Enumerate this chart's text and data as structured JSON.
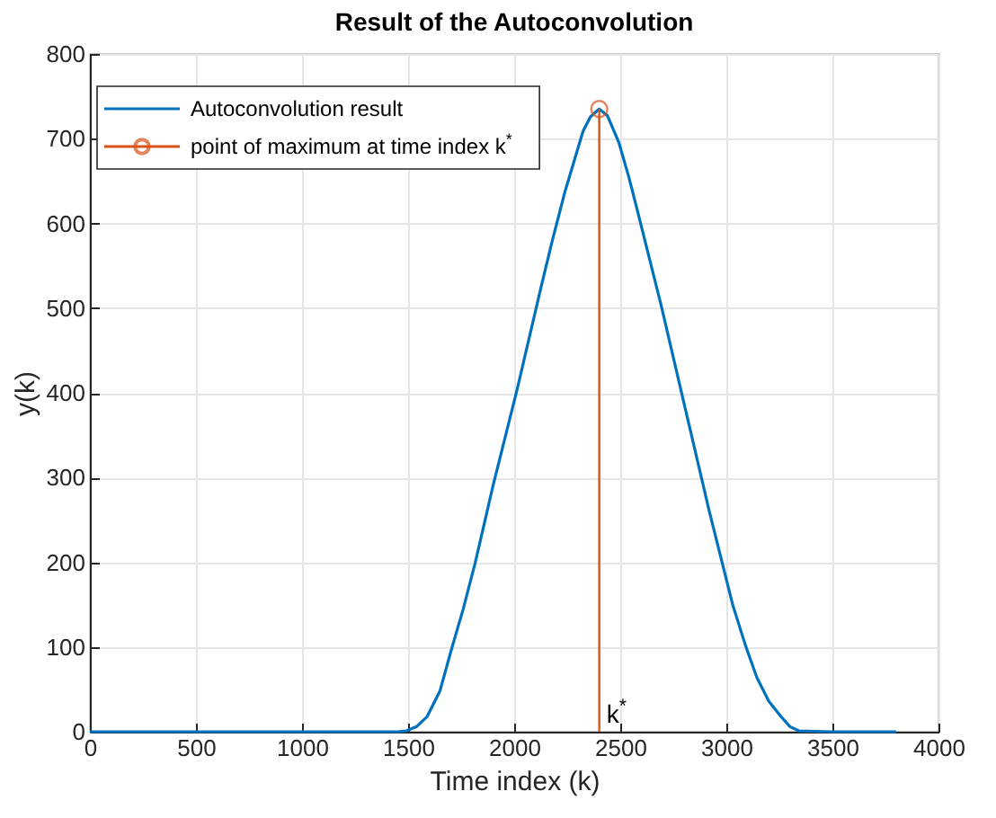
{
  "chart_data": {
    "type": "line",
    "title": "Result of the Autoconvolution",
    "xlabel": "Time index (k)",
    "ylabel": "y(k)",
    "series": [
      {
        "name": "Autoconvolution result",
        "color": "#0072bd",
        "x": [
          0,
          1000,
          1450,
          1492,
          1540,
          1590,
          1650,
          1703,
          1760,
          1816,
          1901,
          2014,
          2127,
          2180,
          2240,
          2325,
          2360,
          2401,
          2440,
          2494,
          2540,
          2579,
          2692,
          2805,
          2918,
          3031,
          3090,
          3144,
          3200,
          3257,
          3300,
          3342,
          3500,
          3800
        ],
        "values": [
          0,
          0,
          0,
          1,
          6,
          18,
          48,
          96,
          145,
          199,
          291,
          404,
          525,
          580,
          638,
          709,
          726,
          735,
          727,
          695,
          655,
          617,
          504,
          383,
          262,
          149,
          102,
          64,
          36,
          18,
          6,
          1,
          0,
          0
        ]
      },
      {
        "name": "point of maximum at time index k$^{*}$",
        "type": "lollipop",
        "marker": "circle",
        "color": "#d95319",
        "x": [
          2401
        ],
        "values": [
          735
        ]
      }
    ],
    "annotations": [
      "k$^{*}$"
    ],
    "xlim": [
      0,
      4000
    ],
    "xticks": [
      0,
      500,
      1000,
      1500,
      2000,
      2500,
      3000,
      3500,
      4000
    ],
    "ylim": [
      0,
      800
    ],
    "yticks": [
      0,
      100,
      200,
      300,
      400,
      500,
      600,
      700,
      800
    ],
    "grid": true,
    "legend": "top left"
  }
}
